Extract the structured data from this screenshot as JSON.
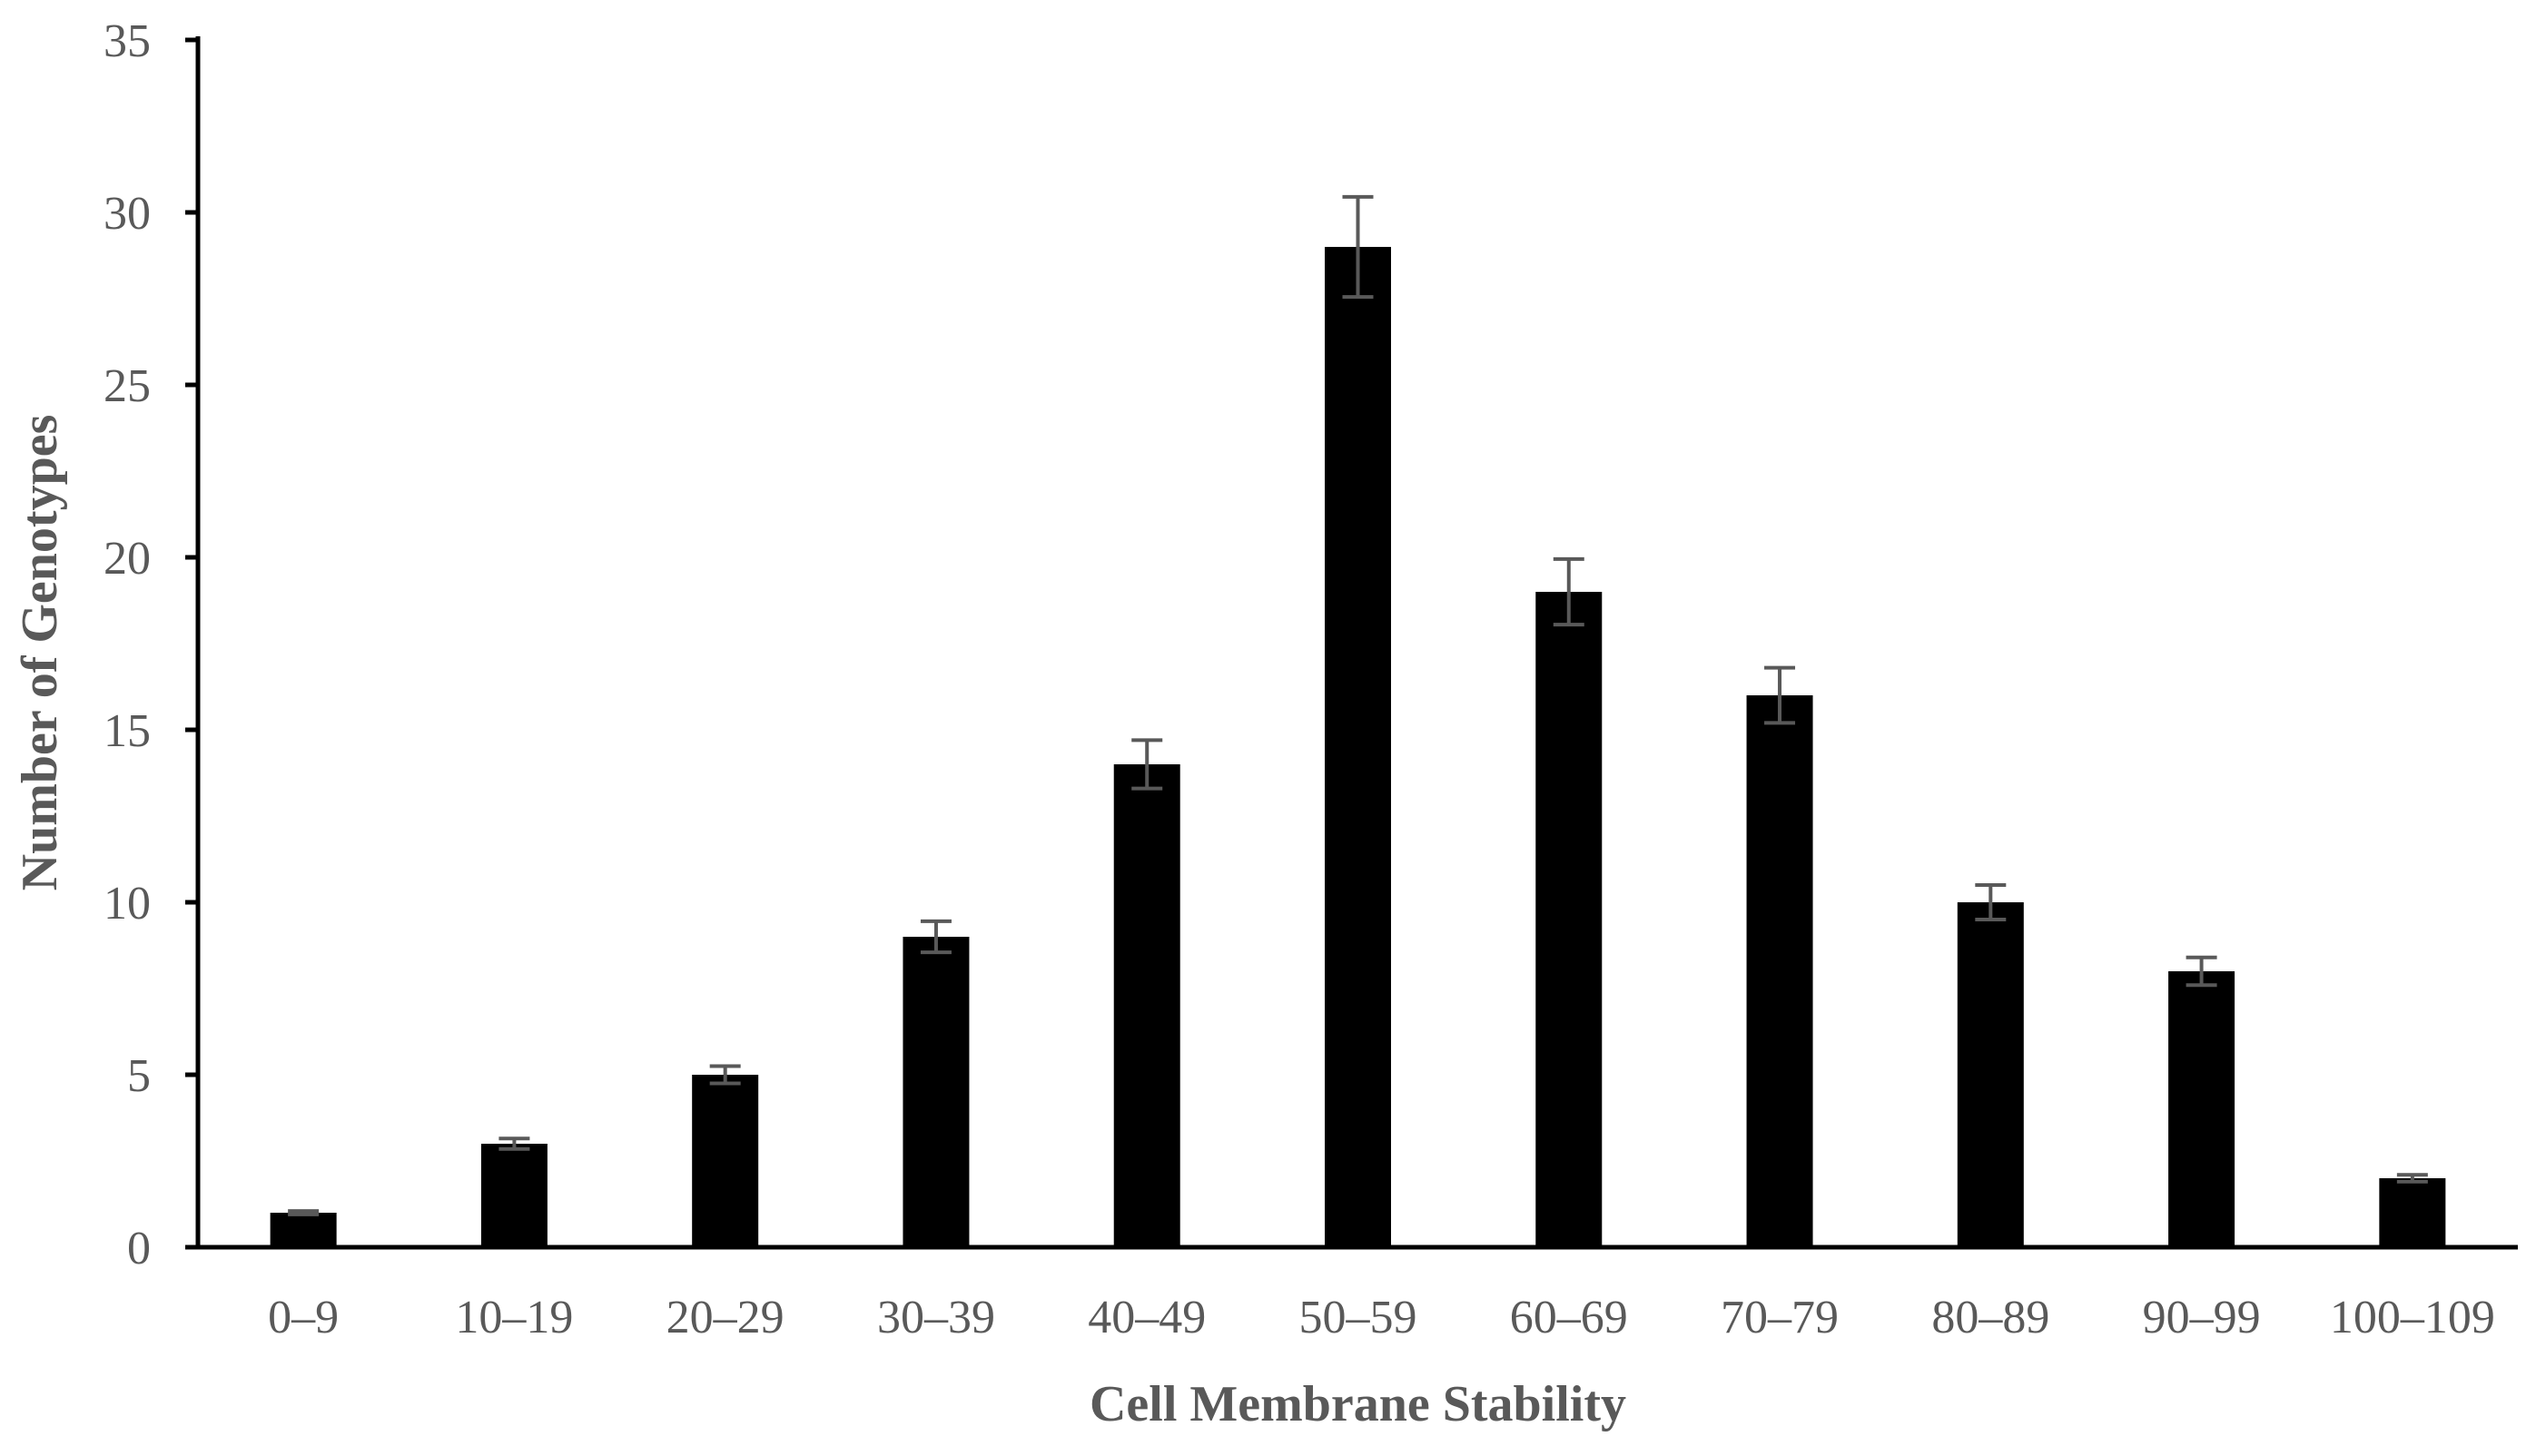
{
  "chart_data": {
    "type": "bar",
    "title": "",
    "xlabel": "Cell Membrane Stability",
    "ylabel": "Number of Genotypes",
    "categories": [
      "0–9",
      "10–19",
      "20–29",
      "30–39",
      "40–49",
      "50–59",
      "60–69",
      "70–79",
      "80–89",
      "90–99",
      "100–109"
    ],
    "values": [
      1,
      3,
      5,
      9,
      14,
      29,
      19,
      16,
      10,
      8,
      2
    ],
    "error": [
      0.05,
      0.15,
      0.25,
      0.45,
      0.7,
      1.45,
      0.95,
      0.8,
      0.5,
      0.4,
      0.1
    ],
    "ylim": [
      0,
      35
    ],
    "yticks": [
      0,
      5,
      10,
      15,
      20,
      25,
      30,
      35
    ],
    "grid": false,
    "legend": "none",
    "colors": {
      "bar": "#000000",
      "error_bar": "#595959",
      "axis": "#000000",
      "text": "#595959"
    }
  }
}
